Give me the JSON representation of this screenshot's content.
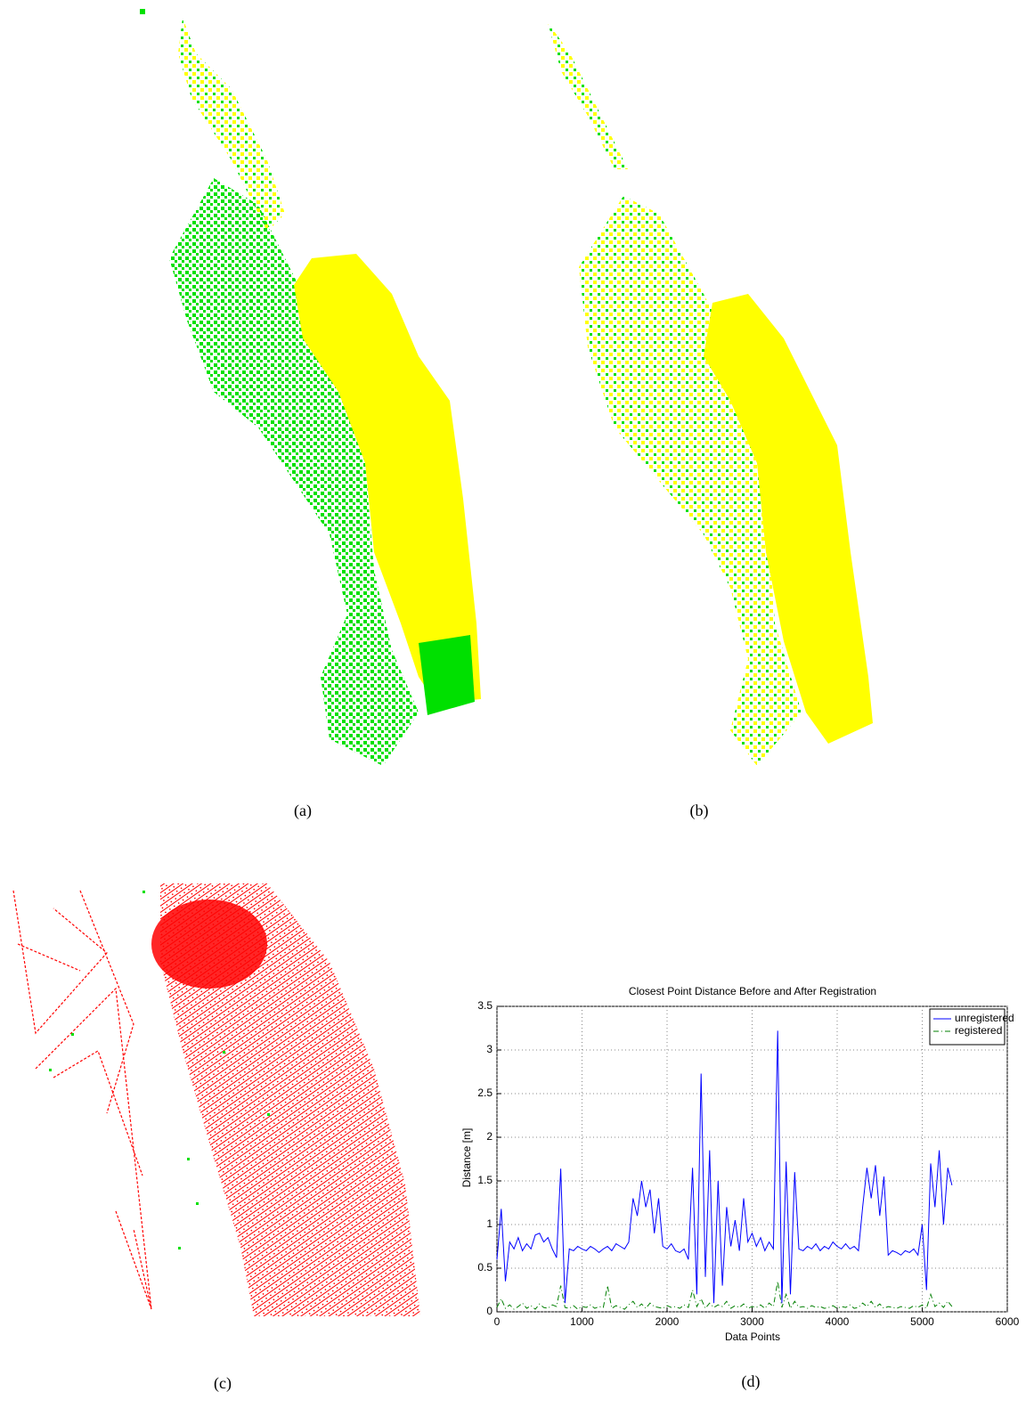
{
  "captions": [
    "(a)",
    "(b)",
    "(c)",
    "(d)"
  ],
  "chart_data": {
    "type": "line",
    "title": "Closest Point Distance Before and After Registration",
    "xlabel": "Data Points",
    "ylabel": "Distance [m]",
    "xlim": [
      0,
      6000
    ],
    "xticks": [
      0,
      1000,
      2000,
      3000,
      4000,
      5000,
      6000
    ],
    "ylim": [
      0,
      3.5
    ],
    "yticks": [
      0,
      0.5,
      1,
      1.5,
      2,
      2.5,
      3,
      3.5
    ],
    "grid": true,
    "legend": "upper right",
    "x": [
      0,
      50,
      100,
      150,
      200,
      250,
      300,
      350,
      400,
      450,
      500,
      550,
      600,
      650,
      700,
      750,
      800,
      850,
      900,
      950,
      1000,
      1050,
      1100,
      1150,
      1200,
      1250,
      1300,
      1350,
      1400,
      1450,
      1500,
      1550,
      1600,
      1650,
      1700,
      1750,
      1800,
      1850,
      1900,
      1950,
      2000,
      2050,
      2100,
      2150,
      2200,
      2250,
      2300,
      2350,
      2400,
      2450,
      2500,
      2550,
      2600,
      2650,
      2700,
      2750,
      2800,
      2850,
      2900,
      2950,
      3000,
      3050,
      3100,
      3150,
      3200,
      3250,
      3300,
      3350,
      3400,
      3450,
      3500,
      3550,
      3600,
      3650,
      3700,
      3750,
      3800,
      3850,
      3900,
      3950,
      4000,
      4050,
      4100,
      4150,
      4200,
      4250,
      4300,
      4350,
      4400,
      4450,
      4500,
      4550,
      4600,
      4650,
      4700,
      4750,
      4800,
      4850,
      4900,
      4950,
      5000,
      5050,
      5100,
      5150,
      5200,
      5250,
      5300,
      5350
    ],
    "series": [
      {
        "name": "unregistered",
        "color": "#0000ff",
        "values": [
          0.6,
          1.18,
          0.35,
          0.8,
          0.72,
          0.85,
          0.7,
          0.78,
          0.72,
          0.88,
          0.9,
          0.8,
          0.85,
          0.72,
          0.62,
          1.64,
          0.1,
          0.72,
          0.7,
          0.75,
          0.72,
          0.7,
          0.75,
          0.72,
          0.68,
          0.72,
          0.75,
          0.7,
          0.78,
          0.75,
          0.72,
          0.8,
          1.3,
          1.1,
          1.5,
          1.2,
          1.4,
          0.9,
          1.3,
          0.75,
          0.72,
          0.78,
          0.7,
          0.68,
          0.72,
          0.6,
          1.65,
          0.2,
          2.73,
          0.4,
          1.85,
          0.1,
          1.5,
          0.3,
          1.2,
          0.75,
          1.05,
          0.7,
          1.3,
          0.8,
          0.9,
          0.75,
          0.85,
          0.7,
          0.8,
          0.72,
          3.22,
          0.1,
          1.72,
          0.2,
          1.6,
          0.72,
          0.7,
          0.75,
          0.72,
          0.78,
          0.7,
          0.75,
          0.72,
          0.8,
          0.75,
          0.72,
          0.78,
          0.72,
          0.75,
          0.7,
          1.2,
          1.65,
          1.3,
          1.68,
          1.1,
          1.55,
          0.65,
          0.7,
          0.68,
          0.65,
          0.7,
          0.68,
          0.72,
          0.65,
          1.0,
          0.25,
          1.7,
          1.2,
          1.85,
          1.0,
          1.65,
          1.45
        ]
      },
      {
        "name": "registered",
        "color": "#007f00",
        "values": [
          0.05,
          0.15,
          0.04,
          0.08,
          0.03,
          0.06,
          0.1,
          0.04,
          0.07,
          0.03,
          0.09,
          0.05,
          0.04,
          0.08,
          0.06,
          0.3,
          0.05,
          0.04,
          0.07,
          0.03,
          0.06,
          0.05,
          0.08,
          0.04,
          0.06,
          0.05,
          0.3,
          0.04,
          0.07,
          0.05,
          0.03,
          0.08,
          0.12,
          0.05,
          0.09,
          0.04,
          0.1,
          0.06,
          0.05,
          0.04,
          0.07,
          0.05,
          0.06,
          0.04,
          0.08,
          0.05,
          0.25,
          0.06,
          0.15,
          0.04,
          0.1,
          0.05,
          0.08,
          0.06,
          0.12,
          0.04,
          0.07,
          0.05,
          0.09,
          0.04,
          0.06,
          0.05,
          0.08,
          0.04,
          0.1,
          0.06,
          0.35,
          0.05,
          0.2,
          0.04,
          0.12,
          0.05,
          0.06,
          0.04,
          0.07,
          0.05,
          0.06,
          0.04,
          0.05,
          0.07,
          0.04,
          0.06,
          0.05,
          0.08,
          0.04,
          0.05,
          0.1,
          0.06,
          0.12,
          0.05,
          0.09,
          0.04,
          0.06,
          0.05,
          0.04,
          0.06,
          0.05,
          0.04,
          0.07,
          0.05,
          0.08,
          0.04,
          0.2,
          0.06,
          0.1,
          0.05,
          0.12,
          0.06
        ],
        "dash": "6,3,1,3"
      }
    ]
  }
}
